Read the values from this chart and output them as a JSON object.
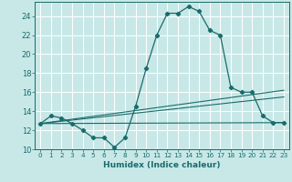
{
  "title": "",
  "xlabel": "Humidex (Indice chaleur)",
  "ylabel": "",
  "bg_color": "#c8e8e8",
  "grid_color": "#ffffff",
  "line_color": "#1a6b6b",
  "xlim": [
    -0.5,
    23.5
  ],
  "ylim": [
    10,
    25.5
  ],
  "xticks": [
    0,
    1,
    2,
    3,
    4,
    5,
    6,
    7,
    8,
    9,
    10,
    11,
    12,
    13,
    14,
    15,
    16,
    17,
    18,
    19,
    20,
    21,
    22,
    23
  ],
  "yticks": [
    10,
    12,
    14,
    16,
    18,
    20,
    22,
    24
  ],
  "series_main": {
    "x": [
      0,
      1,
      2,
      3,
      4,
      5,
      6,
      7,
      8,
      9,
      10,
      11,
      12,
      13,
      14,
      15,
      16,
      17,
      18,
      19,
      20,
      21,
      22,
      23
    ],
    "y": [
      12.7,
      13.5,
      13.3,
      12.7,
      12.0,
      11.2,
      11.2,
      10.2,
      11.2,
      14.5,
      18.5,
      22.0,
      24.3,
      24.3,
      25.0,
      24.5,
      22.5,
      22.0,
      16.5,
      16.0,
      16.0,
      13.5,
      12.8,
      12.8
    ]
  },
  "series_lines": [
    {
      "x": [
        0,
        23
      ],
      "y": [
        12.7,
        12.8
      ]
    },
    {
      "x": [
        0,
        23
      ],
      "y": [
        12.7,
        16.2
      ]
    },
    {
      "x": [
        0,
        23
      ],
      "y": [
        12.7,
        15.5
      ]
    }
  ]
}
